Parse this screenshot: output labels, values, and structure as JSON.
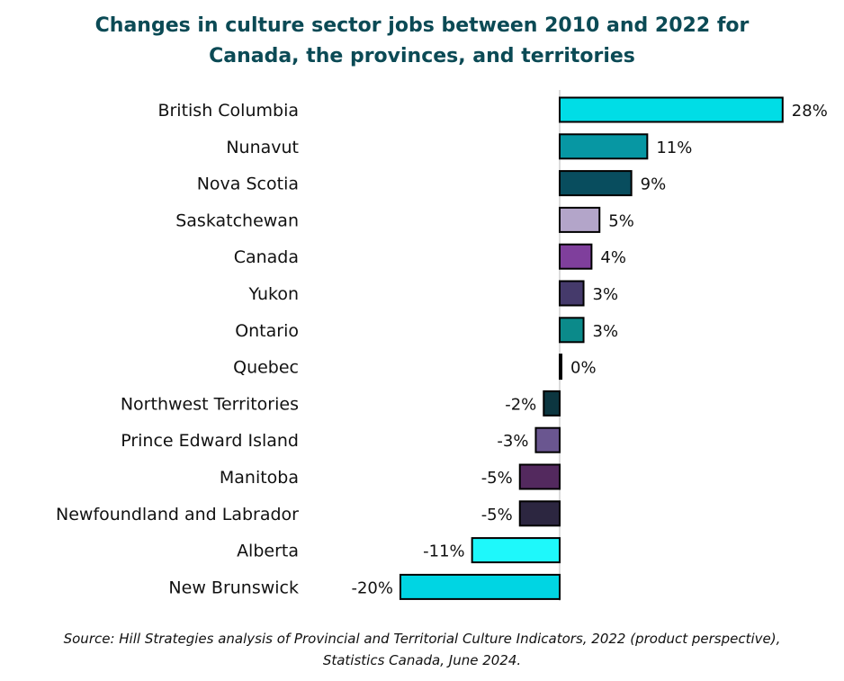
{
  "chart_data": {
    "type": "bar",
    "orientation": "horizontal",
    "title_lines": [
      "Changes in culture sector jobs between 2010 and 2022 for",
      "Canada, the provinces, and territories"
    ],
    "categories": [
      "British Columbia",
      "Nunavut",
      "Nova Scotia",
      "Saskatchewan",
      "Canada",
      "Yukon",
      "Ontario",
      "Quebec",
      "Northwest Territories",
      "Prince Edward Island",
      "Manitoba",
      "Newfoundland and Labrador",
      "Alberta",
      "New Brunswick"
    ],
    "values": [
      28,
      11,
      9,
      5,
      4,
      3,
      3,
      0,
      -2,
      -3,
      -5,
      -5,
      -11,
      -20
    ],
    "labels": [
      "28%",
      "11%",
      "9%",
      "5%",
      "4%",
      "3%",
      "3%",
      "0%",
      "-2%",
      "-3%",
      "-5%",
      "-5%",
      "-11%",
      "-20%"
    ],
    "colors": [
      "#00dde6",
      "#0797a3",
      "#084d5e",
      "#b3a5c9",
      "#7f3f9c",
      "#453a6b",
      "#0b8a8a",
      "#1a1a1a",
      "#0c3640",
      "#6a5690",
      "#53295e",
      "#2c2640",
      "#1ef8fb",
      "#00d5e3"
    ],
    "unit": "%",
    "xlim": [
      -20.5,
      28.5
    ],
    "grid": false,
    "legend": "none"
  },
  "source_lines": [
    "Source: Hill Strategies analysis of Provincial and Territorial Culture Indicators, 2022 (product perspective),",
    "Statistics Canada, June 2024."
  ]
}
